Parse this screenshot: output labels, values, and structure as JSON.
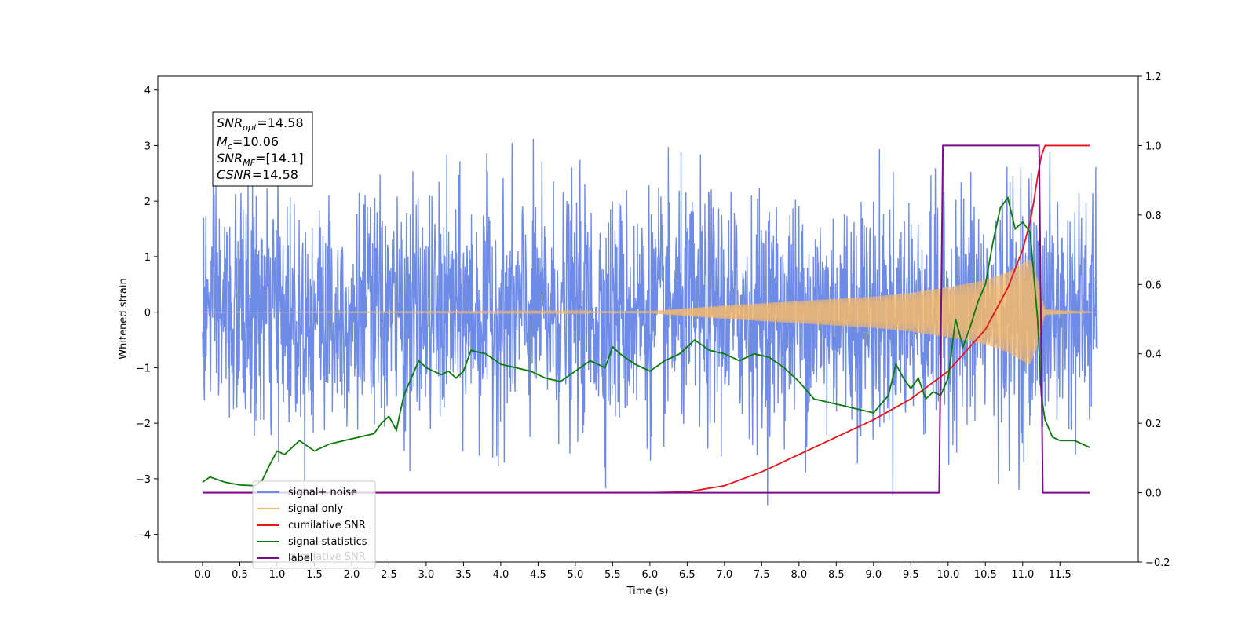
{
  "chart_data": {
    "type": "line",
    "title": "",
    "xlabel": "Time (s)",
    "ylabel": "Whitened strain",
    "xlim": [
      -0.6,
      12.55
    ],
    "ylim": [
      -4.5,
      4.25
    ],
    "ylim_right": [
      -0.2,
      1.2
    ],
    "x_ticks": [
      "0.0",
      "0.5",
      "1.0",
      "1.5",
      "2.0",
      "2.5",
      "3.0",
      "3.5",
      "4.0",
      "4.5",
      "5.0",
      "5.5",
      "6.0",
      "6.5",
      "7.0",
      "7.5",
      "8.0",
      "8.5",
      "9.0",
      "9.5",
      "10.0",
      "10.5",
      "11.0",
      "11.5"
    ],
    "y_ticks_left": [
      "4",
      "3",
      "2",
      "1",
      "0",
      "−1",
      "−2",
      "−3",
      "−4"
    ],
    "y_ticks_right": [
      "1.2",
      "1.0",
      "0.8",
      "0.6",
      "0.4",
      "0.2",
      "0.0",
      "−0.2"
    ],
    "legend_position": "lower-left",
    "grid": false,
    "annotation": {
      "snr_opt": {
        "name": "SNR",
        "sub": "opt",
        "value": "=14.58"
      },
      "mc": {
        "name": "M",
        "sub": "c",
        "value": "=10.06"
      },
      "snr_mf": {
        "name": "SNR",
        "sub": "MF",
        "value": "=[14.1]"
      },
      "csnr": {
        "name": "CSNR",
        "sub": "",
        "value": "=14.58"
      }
    },
    "series": [
      {
        "name": "signal+ noise",
        "axis": "left",
        "color": "#6f8be8",
        "noise_amplitude_sigma": 1.0,
        "x_range": [
          0.0,
          12.0
        ]
      },
      {
        "name": "signal only",
        "axis": "left",
        "color": "#f5b86a",
        "envelope_x": [
          0.0,
          6.0,
          7.0,
          8.0,
          9.0,
          9.5,
          10.0,
          10.5,
          10.8,
          11.0,
          11.1,
          11.2,
          11.3,
          12.0
        ],
        "envelope_y": [
          0.0,
          0.02,
          0.12,
          0.2,
          0.28,
          0.35,
          0.45,
          0.58,
          0.72,
          0.88,
          0.95,
          0.6,
          0.05,
          0.0
        ]
      },
      {
        "name": "cumilative SNR",
        "axis": "right",
        "color": "#e8141b",
        "x": [
          0.0,
          6.0,
          6.5,
          7.0,
          7.5,
          8.0,
          8.5,
          9.0,
          9.5,
          10.0,
          10.5,
          10.8,
          11.0,
          11.1,
          11.15,
          11.2,
          11.25,
          11.3,
          11.5,
          11.9
        ],
        "y": [
          0.0,
          0.0,
          0.002,
          0.02,
          0.06,
          0.11,
          0.16,
          0.21,
          0.27,
          0.35,
          0.47,
          0.59,
          0.7,
          0.78,
          0.84,
          0.91,
          0.97,
          1.0,
          1.0,
          1.0
        ]
      },
      {
        "name": "signal statistics",
        "axis": "right",
        "color": "#0a7a0a",
        "x": [
          0.0,
          0.1,
          0.3,
          0.5,
          0.7,
          0.8,
          0.9,
          1.0,
          1.1,
          1.2,
          1.3,
          1.5,
          1.7,
          1.9,
          2.1,
          2.3,
          2.4,
          2.5,
          2.6,
          2.7,
          2.8,
          2.9,
          3.0,
          3.1,
          3.2,
          3.3,
          3.4,
          3.5,
          3.6,
          3.8,
          4.0,
          4.2,
          4.4,
          4.6,
          4.8,
          5.0,
          5.2,
          5.4,
          5.5,
          5.6,
          5.8,
          6.0,
          6.2,
          6.4,
          6.6,
          6.8,
          7.0,
          7.2,
          7.4,
          7.6,
          7.8,
          8.0,
          8.2,
          8.4,
          8.6,
          8.8,
          9.0,
          9.2,
          9.3,
          9.4,
          9.5,
          9.6,
          9.7,
          9.8,
          9.9,
          10.0,
          10.1,
          10.2,
          10.3,
          10.4,
          10.5,
          10.6,
          10.7,
          10.8,
          10.9,
          11.0,
          11.1,
          11.2,
          11.25,
          11.3,
          11.4,
          11.5,
          11.7,
          11.9
        ],
        "y": [
          0.03,
          0.045,
          0.03,
          0.022,
          0.02,
          0.035,
          0.08,
          0.12,
          0.11,
          0.13,
          0.15,
          0.12,
          0.14,
          0.15,
          0.16,
          0.17,
          0.2,
          0.22,
          0.18,
          0.28,
          0.33,
          0.38,
          0.36,
          0.35,
          0.34,
          0.35,
          0.33,
          0.35,
          0.41,
          0.4,
          0.37,
          0.36,
          0.35,
          0.33,
          0.32,
          0.35,
          0.38,
          0.36,
          0.42,
          0.4,
          0.37,
          0.35,
          0.38,
          0.4,
          0.44,
          0.41,
          0.4,
          0.38,
          0.4,
          0.39,
          0.36,
          0.32,
          0.27,
          0.26,
          0.25,
          0.24,
          0.23,
          0.28,
          0.37,
          0.33,
          0.3,
          0.33,
          0.27,
          0.29,
          0.28,
          0.33,
          0.5,
          0.42,
          0.48,
          0.55,
          0.6,
          0.72,
          0.82,
          0.85,
          0.76,
          0.78,
          0.75,
          0.5,
          0.28,
          0.21,
          0.16,
          0.15,
          0.15,
          0.13
        ]
      },
      {
        "name": "label",
        "axis": "right",
        "color": "#7b0d8c",
        "x": [
          0.0,
          9.88,
          9.93,
          11.22,
          11.27,
          11.9
        ],
        "y": [
          0.0,
          0.0,
          1.0,
          1.0,
          0.0,
          0.0
        ]
      }
    ],
    "legend": {
      "entries": [
        "signal+ noise",
        "signal only",
        "cumilative SNR",
        "signal statistics",
        "label"
      ],
      "ghost_text": "cumilative SNR"
    }
  }
}
